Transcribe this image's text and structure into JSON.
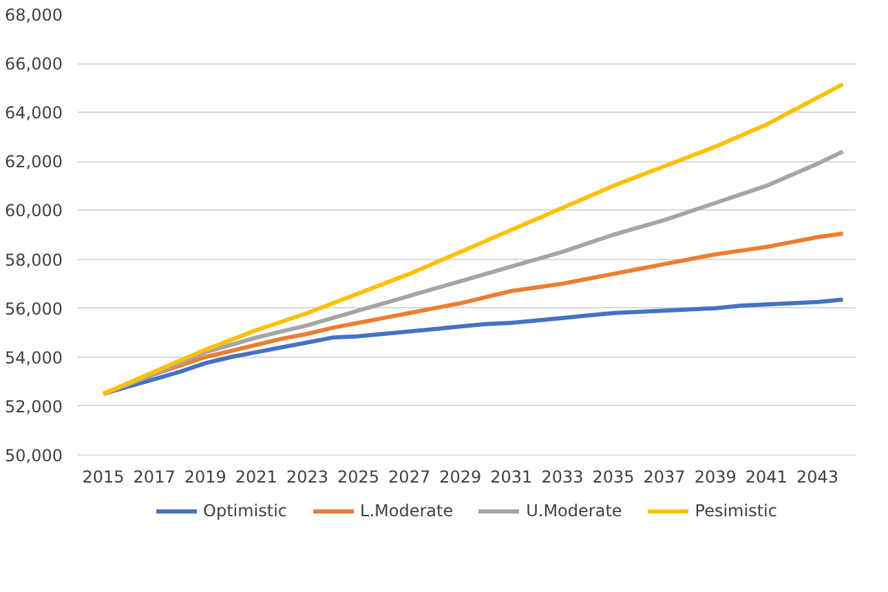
{
  "chart_data": {
    "type": "line",
    "x": [
      2015,
      2016,
      2017,
      2018,
      2019,
      2020,
      2021,
      2022,
      2023,
      2024,
      2025,
      2026,
      2027,
      2028,
      2029,
      2030,
      2031,
      2032,
      2033,
      2034,
      2035,
      2036,
      2037,
      2038,
      2039,
      2040,
      2041,
      2042,
      2043,
      2044
    ],
    "series": [
      {
        "name": "Optimistic",
        "color": "#4472c4",
        "values": [
          52500,
          52800,
          53100,
          53400,
          53750,
          54000,
          54200,
          54400,
          54600,
          54800,
          54850,
          54950,
          55050,
          55150,
          55250,
          55350,
          55400,
          55500,
          55600,
          55700,
          55800,
          55850,
          55900,
          55950,
          56000,
          56100,
          56150,
          56200,
          56250,
          56350
        ]
      },
      {
        "name": "L.Moderate",
        "color": "#ed7d31",
        "values": [
          52500,
          52900,
          53300,
          53650,
          54000,
          54250,
          54500,
          54750,
          54950,
          55200,
          55400,
          55600,
          55800,
          56000,
          56200,
          56450,
          56700,
          56850,
          57000,
          57200,
          57400,
          57600,
          57800,
          58000,
          58200,
          58350,
          58500,
          58700,
          58900,
          59050
        ]
      },
      {
        "name": "U.Moderate",
        "color": "#a5a5a5",
        "values": [
          52500,
          52900,
          53300,
          53750,
          54200,
          54500,
          54800,
          55050,
          55300,
          55600,
          55900,
          56200,
          56500,
          56800,
          57100,
          57400,
          57700,
          58000,
          58300,
          58650,
          59000,
          59300,
          59600,
          59950,
          60300,
          60650,
          61000,
          61450,
          61900,
          62400
        ]
      },
      {
        "name": "Pesimistic",
        "color": "#ffc000",
        "values": [
          52500,
          52950,
          53400,
          53850,
          54300,
          54700,
          55100,
          55450,
          55800,
          56200,
          56600,
          57000,
          57400,
          57850,
          58300,
          58750,
          59200,
          59650,
          60100,
          60550,
          61000,
          61400,
          61800,
          62200,
          62600,
          63050,
          63500,
          64050,
          64600,
          65150
        ]
      }
    ],
    "xlim": [
      2014,
      2044.5
    ],
    "xticks": [
      2015,
      2017,
      2019,
      2021,
      2023,
      2025,
      2027,
      2029,
      2031,
      2033,
      2035,
      2037,
      2039,
      2041,
      2043
    ],
    "ylim": [
      50000,
      68000
    ],
    "yticks": [
      {
        "value": 50000,
        "label": "50,000"
      },
      {
        "value": 52000,
        "label": "52,000"
      },
      {
        "value": 54000,
        "label": "54,000"
      },
      {
        "value": 56000,
        "label": "56,000"
      },
      {
        "value": 58000,
        "label": "58,000"
      },
      {
        "value": 60000,
        "label": "60,000"
      },
      {
        "value": 62000,
        "label": "62,000"
      },
      {
        "value": 64000,
        "label": "64,000"
      },
      {
        "value": 66000,
        "label": "66,000"
      },
      {
        "value": 68000,
        "label": "68,000"
      }
    ],
    "grid": "y",
    "legend": "bottom",
    "marker": "none",
    "line_style": "solid"
  }
}
